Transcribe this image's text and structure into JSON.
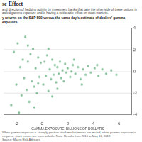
{
  "chart_data": {
    "type": "scatter",
    "title": "se Effect",
    "description": "and direction of hedging activity by investment banks that take the other side of these options is called gamma exposure and is having a noticeable effect on stock markets.",
    "subtitle": "y returns on the S&P 500 versus the same day's estimate of dealers' gamma exposure",
    "x_label": "GAMMA EXPOSURE, BILLIONS OF DOLLARS",
    "note": "When gamma exposure is strongly positive stock market moves are muted, when gamma exposure is negative, stock moves are more volatile. Note: Results from 2010 to May 16, 2018",
    "source": "Source: Macro Risk Advisors",
    "color": "#3a9a5c",
    "marker": "circle",
    "grid": true,
    "xlim": [
      -3,
      7
    ],
    "xticks": [
      -2,
      0,
      2,
      4,
      6
    ],
    "ylim": [
      -4,
      4
    ],
    "yticks": [
      -4,
      -2,
      0,
      2,
      4
    ],
    "x": [
      -2.4,
      -2.2,
      -2.0,
      -1.9,
      -1.8,
      -1.7,
      -1.6,
      -1.5,
      -1.4,
      -1.3,
      -1.2,
      -1.1,
      -1.0,
      -0.9,
      -0.8,
      -0.7,
      -0.6,
      -0.5,
      -0.4,
      -0.3,
      -0.2,
      -0.1,
      -0.6,
      -1.1,
      -0.3,
      0.1,
      0.2,
      0.3,
      0.4,
      0.5,
      0.6,
      0.7,
      0.8,
      0.9,
      1.0,
      1.1,
      1.2,
      1.3,
      1.4,
      1.5,
      1.6,
      1.7,
      1.8,
      1.9,
      2.0,
      0.5,
      1.2,
      0.8,
      2.2,
      2.4,
      2.6,
      2.8,
      3.0,
      3.2,
      3.4,
      3.6,
      3.8,
      2.5,
      3.1,
      2.3,
      4.1,
      4.4,
      4.7,
      5.0,
      5.4,
      5.8,
      4.3
    ],
    "values": [
      -3.1,
      1.8,
      -1.2,
      2.6,
      -3.8,
      0.4,
      -2.2,
      1.1,
      -0.6,
      3.2,
      -1.7,
      0.9,
      -2.8,
      1.6,
      -0.9,
      2.1,
      -1.4,
      0.3,
      -2.0,
      1.3,
      -0.5,
      0.8,
      -3.3,
      2.4,
      -1.1,
      -1.2,
      0.9,
      -0.4,
      1.5,
      -1.8,
      0.2,
      -0.7,
      1.1,
      -0.3,
      0.6,
      -1.0,
      0.4,
      -0.2,
      0.9,
      -0.6,
      0.1,
      -0.9,
      0.7,
      -0.1,
      0.3,
      2.1,
      -1.6,
      -2.3,
      -0.5,
      0.6,
      -0.2,
      0.4,
      -0.7,
      0.2,
      -0.3,
      0.5,
      -0.1,
      1.1,
      -1.2,
      0.0,
      0.3,
      -0.4,
      0.2,
      -0.2,
      0.1,
      -0.3,
      0.6
    ]
  }
}
